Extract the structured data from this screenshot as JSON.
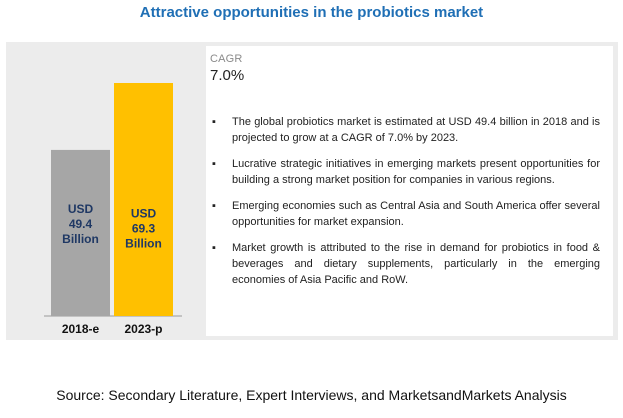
{
  "title": "Attractive opportunities in the probiotics market",
  "chart_data": {
    "type": "bar",
    "categories": [
      "2018-e",
      "2023-p"
    ],
    "values": [
      49.4,
      69.3
    ],
    "data_labels": [
      [
        "USD",
        "49.4",
        "Billion"
      ],
      [
        "USD",
        "69.3",
        "Billion"
      ]
    ],
    "colors": [
      "#a6a6a6",
      "#ffc000"
    ],
    "label_colors": [
      "#1f3864",
      "#1f3864"
    ],
    "ylim": [
      0,
      69.3
    ],
    "grid": false,
    "legend": "none"
  },
  "cagr": {
    "label": "CAGR",
    "value": "7.0%"
  },
  "bullets": [
    "The global probiotics market is estimated at USD 49.4 billion in 2018 and is projected to grow at a CAGR of 7.0% by 2023.",
    "Lucrative strategic initiatives in emerging markets present opportunities for building a strong market position for companies in various regions.",
    "Emerging economies such as Central Asia and South America offer several opportunities for market expansion.",
    "Market growth is attributed to the rise in demand for probiotics in food & beverages and dietary supplements, particularly in the emerging economies of Asia Pacific and RoW."
  ],
  "bullet_symbol": "▪",
  "source": "Source: Secondary Literature, Expert Interviews, and MarketsandMarkets Analysis"
}
